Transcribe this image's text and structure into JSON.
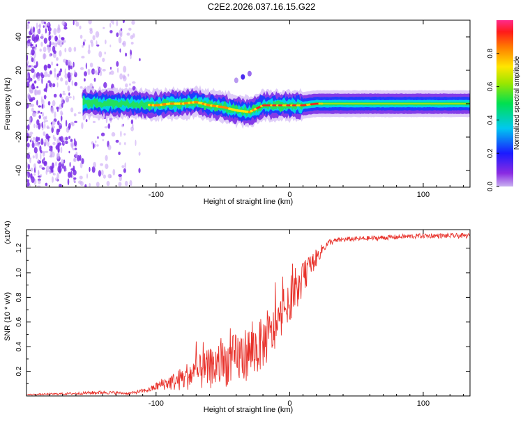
{
  "title": "C2E2.2026.037.16.15.G22",
  "colors": {
    "snr_line": "#e8322b",
    "axis": "#000000",
    "scatter": "#7a2be6",
    "scatter_light": "#c9a6f5"
  },
  "chart_data": [
    {
      "type": "heatmap",
      "title": "C2E2.2026.037.16.15.G22",
      "xlabel": "Height of straight line (km)",
      "ylabel": "Frequency (Hz)",
      "xlim": [
        -197,
        135
      ],
      "ylim": [
        -50,
        50
      ],
      "xticks": [
        -100,
        0,
        100
      ],
      "xtick_labels": [
        "-100",
        "0",
        "100"
      ],
      "yticks": [
        -40,
        -20,
        0,
        20,
        40
      ],
      "ytick_labels": [
        "-40",
        "-20",
        "0",
        "20",
        "40"
      ],
      "colorbar": {
        "label": "Normalized spectral amplitude",
        "range": [
          0,
          1
        ],
        "ticks": [
          0.0,
          0.2,
          0.4,
          0.6,
          0.8
        ],
        "tick_labels": [
          "0.0",
          "0.2",
          "0.4",
          "0.6",
          "0.8"
        ],
        "colormap": "rainbow (purple to magenta-red)"
      },
      "frequency_track": {
        "x": [
          -155,
          -140,
          -120,
          -100,
          -90,
          -80,
          -70,
          -60,
          -50,
          -40,
          -30,
          -25,
          -20,
          -10,
          0,
          10,
          20,
          40,
          60,
          80,
          100,
          120,
          135
        ],
        "y": [
          1,
          0,
          0,
          -1,
          0,
          0,
          1,
          -1,
          -2,
          -4,
          -5,
          -3,
          -1,
          -1,
          -1,
          -1,
          0,
          0,
          0,
          0,
          0,
          0,
          0
        ]
      },
      "noise_region_x": [
        -197,
        -112
      ]
    },
    {
      "type": "line",
      "xlabel": "Height of straight line (km)",
      "ylabel": "SNR (10 * v/v)",
      "y_multiplier": "(x10^4)",
      "xlim": [
        -197,
        135
      ],
      "ylim": [
        0,
        1.35
      ],
      "xticks": [
        -100,
        0,
        100
      ],
      "xtick_labels": [
        "-100",
        "0",
        "100"
      ],
      "yticks": [
        0.2,
        0.4,
        0.6,
        0.8,
        1.0,
        1.2
      ],
      "ytick_labels": [
        "0.2",
        "0.4",
        "0.6",
        "0.8",
        "1.0",
        "1.2"
      ],
      "series": [
        {
          "name": "SNR",
          "x": [
            -197,
            -160,
            -140,
            -120,
            -105,
            -95,
            -85,
            -75,
            -65,
            -55,
            -45,
            -35,
            -25,
            -15,
            -10,
            -5,
            0,
            5,
            10,
            15,
            20,
            25,
            30,
            40,
            60,
            80,
            100,
            120,
            135
          ],
          "y": [
            0.01,
            0.02,
            0.03,
            0.02,
            0.05,
            0.1,
            0.12,
            0.17,
            0.2,
            0.24,
            0.28,
            0.33,
            0.38,
            0.48,
            0.55,
            0.68,
            0.75,
            0.85,
            0.95,
            1.05,
            1.12,
            1.2,
            1.25,
            1.27,
            1.28,
            1.29,
            1.3,
            1.3,
            1.3
          ],
          "noise_amplitude": [
            0.005,
            0.01,
            0.015,
            0.01,
            0.02,
            0.05,
            0.08,
            0.12,
            0.15,
            0.18,
            0.2,
            0.22,
            0.22,
            0.2,
            0.18,
            0.15,
            0.15,
            0.15,
            0.13,
            0.1,
            0.07,
            0.04,
            0.025,
            0.02,
            0.02,
            0.02,
            0.02,
            0.02,
            0.02
          ]
        }
      ]
    }
  ]
}
